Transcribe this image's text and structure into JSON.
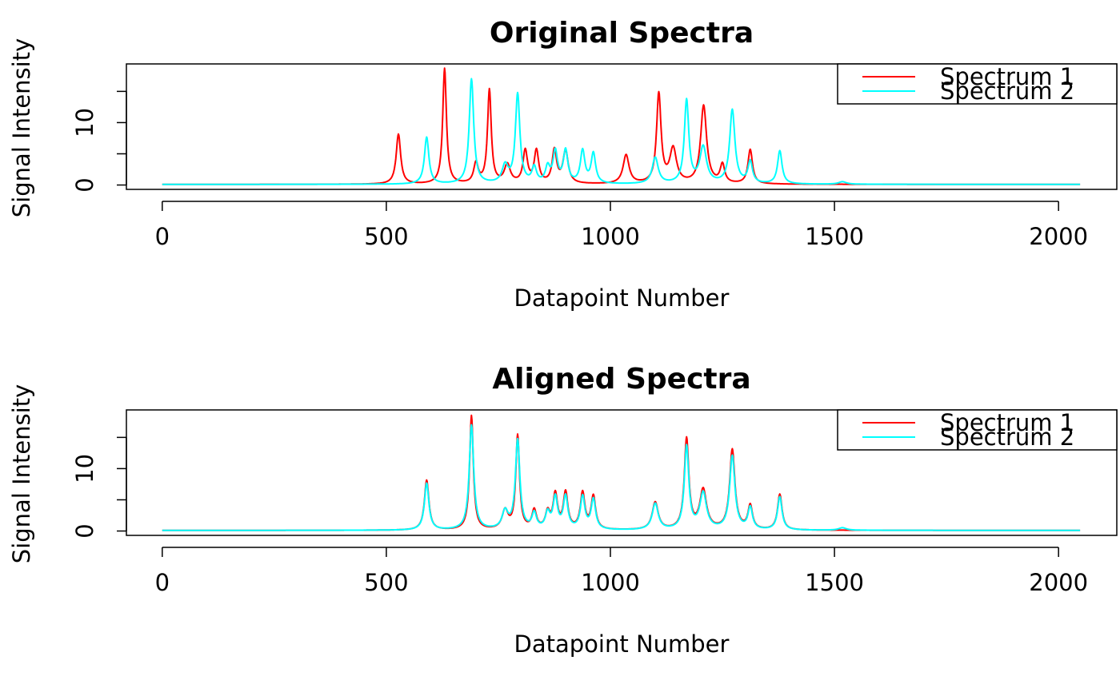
{
  "chart_data": [
    {
      "type": "line",
      "title": "Original Spectra",
      "xlabel": "Datapoint Number",
      "ylabel": "Signal Intensity",
      "xlim": [
        -80,
        2130
      ],
      "ylim": [
        -0.7,
        19.4
      ],
      "xticks": [
        0,
        500,
        1000,
        1500,
        2000
      ],
      "yticks": [
        0,
        5,
        10,
        15
      ],
      "ytick_labels": [
        "0",
        "",
        "10",
        ""
      ],
      "x_range": [
        0,
        2048
      ],
      "legend": {
        "position": "top-right",
        "entries": [
          {
            "label": "Spectrum 1",
            "color": "#ff0000"
          },
          {
            "label": "Spectrum 2",
            "color": "#00ffff"
          }
        ]
      },
      "series": [
        {
          "name": "Spectrum 1",
          "color": "#ff0000",
          "baseline": 0.1,
          "peaks": [
            {
              "x": 527,
              "height": 8.0,
              "width": 6
            },
            {
              "x": 630,
              "height": 18.5,
              "width": 5
            },
            {
              "x": 700,
              "height": 3.2,
              "width": 6
            },
            {
              "x": 730,
              "height": 15.0,
              "width": 5
            },
            {
              "x": 770,
              "height": 3.0,
              "width": 8
            },
            {
              "x": 810,
              "height": 5.2,
              "width": 6
            },
            {
              "x": 835,
              "height": 5.2,
              "width": 6
            },
            {
              "x": 875,
              "height": 5.3,
              "width": 6
            },
            {
              "x": 900,
              "height": 5.2,
              "width": 7
            },
            {
              "x": 1035,
              "height": 4.6,
              "width": 8
            },
            {
              "x": 1108,
              "height": 14.3,
              "width": 6
            },
            {
              "x": 1140,
              "height": 5.5,
              "width": 9
            },
            {
              "x": 1208,
              "height": 12.5,
              "width": 8
            },
            {
              "x": 1250,
              "height": 3.0,
              "width": 6
            },
            {
              "x": 1312,
              "height": 5.5,
              "width": 6
            }
          ]
        },
        {
          "name": "Spectrum 2",
          "color": "#00ffff",
          "baseline": 0.1,
          "peaks": [
            {
              "x": 590,
              "height": 7.5,
              "width": 6
            },
            {
              "x": 690,
              "height": 16.8,
              "width": 6
            },
            {
              "x": 765,
              "height": 2.8,
              "width": 8
            },
            {
              "x": 793,
              "height": 14.3,
              "width": 6
            },
            {
              "x": 830,
              "height": 2.5,
              "width": 6
            },
            {
              "x": 860,
              "height": 2.5,
              "width": 6
            },
            {
              "x": 877,
              "height": 5.0,
              "width": 6
            },
            {
              "x": 900,
              "height": 5.2,
              "width": 6
            },
            {
              "x": 938,
              "height": 5.2,
              "width": 6
            },
            {
              "x": 962,
              "height": 4.8,
              "width": 6
            },
            {
              "x": 1100,
              "height": 4.2,
              "width": 8
            },
            {
              "x": 1170,
              "height": 13.3,
              "width": 6
            },
            {
              "x": 1207,
              "height": 5.8,
              "width": 9
            },
            {
              "x": 1272,
              "height": 11.8,
              "width": 7
            },
            {
              "x": 1312,
              "height": 3.5,
              "width": 6
            },
            {
              "x": 1378,
              "height": 5.3,
              "width": 6
            },
            {
              "x": 1518,
              "height": 0.4,
              "width": 10
            }
          ]
        }
      ]
    },
    {
      "type": "line",
      "title": "Aligned Spectra",
      "xlabel": "Datapoint Number",
      "ylabel": "Signal Intensity",
      "xlim": [
        -80,
        2130
      ],
      "ylim": [
        -0.7,
        19.4
      ],
      "xticks": [
        0,
        500,
        1000,
        1500,
        2000
      ],
      "yticks": [
        0,
        5,
        10,
        15
      ],
      "ytick_labels": [
        "0",
        "",
        "10",
        ""
      ],
      "x_range": [
        0,
        2048
      ],
      "legend": {
        "position": "top-right",
        "entries": [
          {
            "label": "Spectrum 1",
            "color": "#ff0000"
          },
          {
            "label": "Spectrum 2",
            "color": "#00ffff"
          }
        ]
      },
      "series": [
        {
          "name": "Spectrum 1",
          "color": "#ff0000",
          "baseline": 0.1,
          "peaks": [
            {
              "x": 590,
              "height": 8.0,
              "width": 6
            },
            {
              "x": 690,
              "height": 18.3,
              "width": 5
            },
            {
              "x": 765,
              "height": 3.0,
              "width": 8
            },
            {
              "x": 793,
              "height": 15.0,
              "width": 5
            },
            {
              "x": 830,
              "height": 3.0,
              "width": 6
            },
            {
              "x": 860,
              "height": 2.6,
              "width": 6
            },
            {
              "x": 877,
              "height": 5.5,
              "width": 6
            },
            {
              "x": 900,
              "height": 5.8,
              "width": 6
            },
            {
              "x": 938,
              "height": 5.8,
              "width": 6
            },
            {
              "x": 962,
              "height": 5.3,
              "width": 6
            },
            {
              "x": 1100,
              "height": 4.4,
              "width": 8
            },
            {
              "x": 1170,
              "height": 14.5,
              "width": 6
            },
            {
              "x": 1207,
              "height": 6.3,
              "width": 9
            },
            {
              "x": 1272,
              "height": 12.8,
              "width": 7
            },
            {
              "x": 1312,
              "height": 3.8,
              "width": 6
            },
            {
              "x": 1378,
              "height": 5.7,
              "width": 6
            }
          ]
        },
        {
          "name": "Spectrum 2",
          "color": "#00ffff",
          "baseline": 0.1,
          "peaks": [
            {
              "x": 590,
              "height": 7.5,
              "width": 6
            },
            {
              "x": 690,
              "height": 16.8,
              "width": 6
            },
            {
              "x": 765,
              "height": 2.8,
              "width": 8
            },
            {
              "x": 793,
              "height": 14.3,
              "width": 6
            },
            {
              "x": 830,
              "height": 2.5,
              "width": 6
            },
            {
              "x": 860,
              "height": 2.5,
              "width": 6
            },
            {
              "x": 877,
              "height": 5.0,
              "width": 6
            },
            {
              "x": 900,
              "height": 5.2,
              "width": 6
            },
            {
              "x": 938,
              "height": 5.2,
              "width": 6
            },
            {
              "x": 962,
              "height": 4.8,
              "width": 6
            },
            {
              "x": 1100,
              "height": 4.2,
              "width": 8
            },
            {
              "x": 1170,
              "height": 13.3,
              "width": 6
            },
            {
              "x": 1207,
              "height": 5.8,
              "width": 9
            },
            {
              "x": 1272,
              "height": 11.8,
              "width": 7
            },
            {
              "x": 1312,
              "height": 3.5,
              "width": 6
            },
            {
              "x": 1378,
              "height": 5.3,
              "width": 6
            },
            {
              "x": 1518,
              "height": 0.4,
              "width": 10
            }
          ]
        }
      ]
    }
  ]
}
